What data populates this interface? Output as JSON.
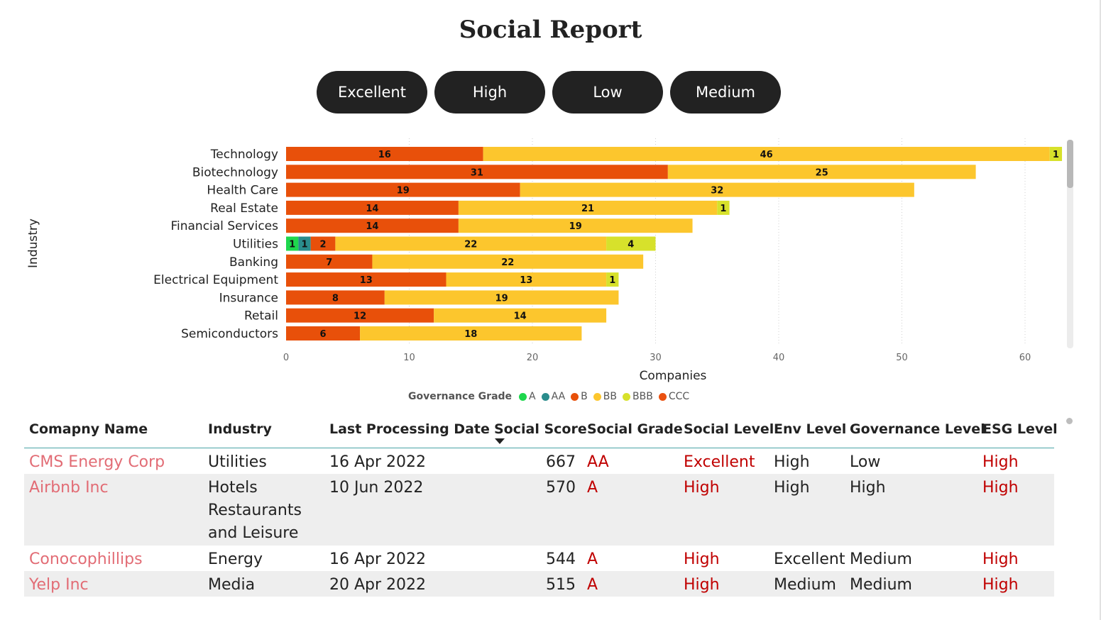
{
  "title": "Social Report",
  "level_buttons": [
    "Excellent",
    "High",
    "Low",
    "Medium"
  ],
  "colors": {
    "A": "#1ed74d",
    "AA": "#2a8c8c",
    "B": "#e8500a",
    "BB": "#fcc62d",
    "BBB": "#d7e12b",
    "CCC": "#ea5110",
    "button_bg": "#222222",
    "company_link": "#e26c75",
    "level_red": "#c00000"
  },
  "chart_data": {
    "type": "bar",
    "orientation": "horizontal",
    "stacked": true,
    "xlabel": "Companies",
    "ylabel": "Industry",
    "xlim": [
      0,
      63
    ],
    "xticks": [
      0,
      10,
      20,
      30,
      40,
      50,
      60
    ],
    "grid": "vertical dotted",
    "legend_position": "bottom",
    "legend_title": "Governance Grade",
    "legend_items": [
      "A",
      "AA",
      "B",
      "BB",
      "BBB",
      "CCC"
    ],
    "categories": [
      "Technology",
      "Biotechnology",
      "Health Care",
      "Real Estate",
      "Financial Services",
      "Utilities",
      "Banking",
      "Electrical Equipment",
      "Insurance",
      "Retail",
      "Semiconductors"
    ],
    "series": [
      {
        "name": "A",
        "values": [
          0,
          0,
          0,
          0,
          0,
          1,
          0,
          0,
          0,
          0,
          0
        ]
      },
      {
        "name": "AA",
        "values": [
          0,
          0,
          0,
          0,
          0,
          1,
          0,
          0,
          0,
          0,
          0
        ]
      },
      {
        "name": "B",
        "values": [
          16,
          31,
          19,
          14,
          14,
          2,
          7,
          13,
          8,
          12,
          6
        ]
      },
      {
        "name": "BB",
        "values": [
          46,
          25,
          32,
          21,
          19,
          22,
          22,
          13,
          19,
          14,
          18
        ]
      },
      {
        "name": "BBB",
        "values": [
          1,
          0,
          0,
          1,
          0,
          4,
          0,
          1,
          0,
          0,
          0
        ]
      }
    ]
  },
  "table": {
    "headers": [
      "Comapny Name",
      "Industry",
      "Last Processing Date",
      "Social Score",
      "Social Grade",
      "Social Level",
      "Env Level",
      "Governance Level",
      "ESG Level"
    ],
    "rows": [
      [
        "CMS Energy Corp",
        "Utilities",
        "16 Apr 2022",
        "667",
        "AA",
        "Excellent",
        "High",
        "Low",
        "High"
      ],
      [
        "Airbnb Inc",
        "Hotels Restaurants and Leisure",
        "10 Jun 2022",
        "570",
        "A",
        "High",
        "High",
        "High",
        "High"
      ],
      [
        "Conocophillips",
        "Energy",
        "16 Apr 2022",
        "544",
        "A",
        "High",
        "Excellent",
        "Medium",
        "High"
      ],
      [
        "Yelp Inc",
        "Media",
        "20 Apr 2022",
        "515",
        "A",
        "High",
        "Medium",
        "Medium",
        "High"
      ]
    ]
  }
}
